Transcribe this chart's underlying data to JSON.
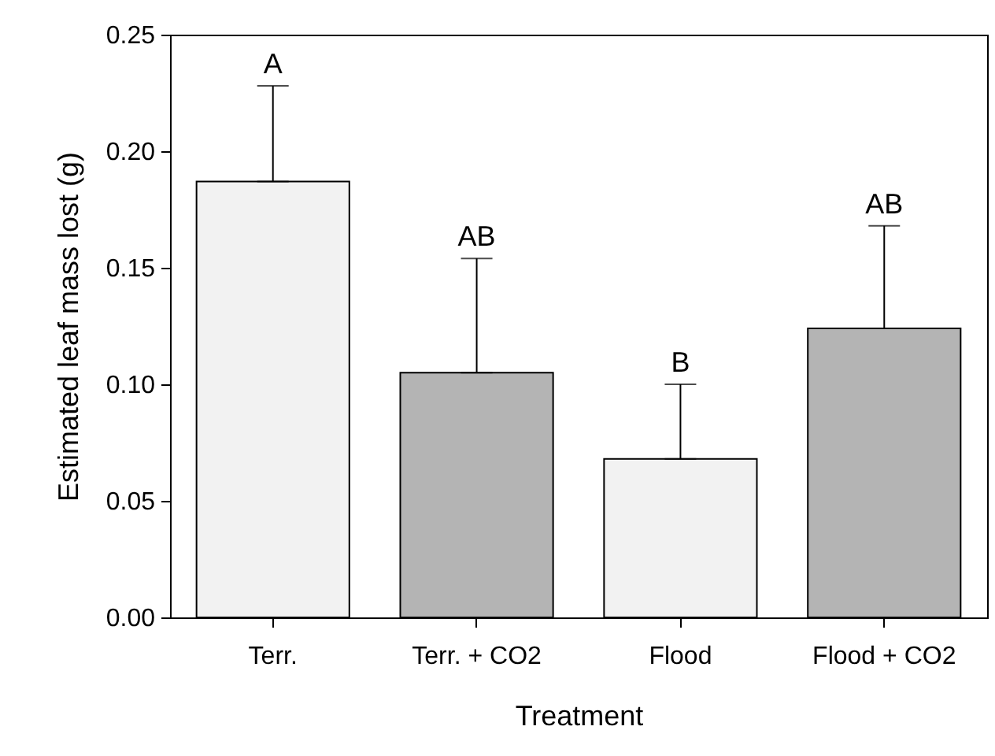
{
  "chart_data": {
    "type": "bar",
    "xlabel": "Treatment",
    "ylabel": "Estimated leaf mass lost (g)",
    "categories": [
      "Terr.",
      "Terr. + CO2",
      "Flood",
      "Flood + CO2"
    ],
    "values": [
      0.187,
      0.105,
      0.068,
      0.124
    ],
    "colors": [
      "#f2f2f2",
      "#b4b4b4",
      "#f2f2f2",
      "#b4b4b4"
    ],
    "errors": [
      [
        0.187,
        0.228
      ],
      [
        0.105,
        0.154
      ],
      [
        0.068,
        0.1
      ],
      [
        0.124,
        0.168
      ]
    ],
    "ylim": [
      0,
      0.25
    ],
    "yticks": [
      {
        "value": 0,
        "label": "0.00"
      },
      0.05,
      {
        "value": 0.1,
        "label": "0.10"
      },
      0.15,
      {
        "value": 0.2,
        "label": "0.20"
      },
      0.25
    ],
    "grid": false,
    "annotations": [
      "A",
      "AB",
      "B",
      "AB"
    ]
  }
}
